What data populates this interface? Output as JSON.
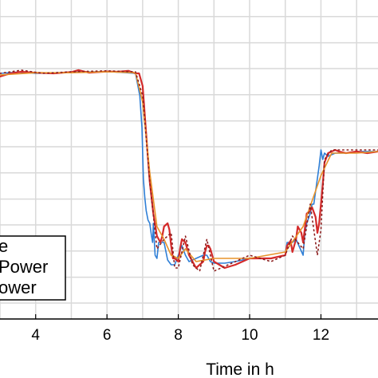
{
  "chart_data": {
    "type": "line",
    "xlabel": "Time in h",
    "ylabel": "",
    "xlim": [
      3.0,
      13.6
    ],
    "ylim": [
      0.0,
      1.0
    ],
    "grid": true,
    "x_ticks": [
      4,
      6,
      8,
      10,
      12
    ],
    "x_tick_labels": [
      "4",
      "6",
      "8",
      "10",
      "12"
    ],
    "y_grid": [
      0.05,
      0.131,
      0.213,
      0.295,
      0.376,
      0.458,
      0.54,
      0.621,
      0.703,
      0.785,
      0.866,
      0.948
    ],
    "legend": {
      "placement": "bottom-left",
      "entries": [
        "e",
        "Power",
        "ower"
      ]
    },
    "colors": {
      "blue": "#2f7fd6",
      "red": "#d42a2a",
      "orange": "#e8932a",
      "dark_red": "#8c1d1d"
    },
    "series": [
      {
        "color": "#2f7fd6",
        "style": "solid",
        "x": [
          3.0,
          3.5,
          4.0,
          5.0,
          6.0,
          6.8,
          6.92,
          6.98,
          7.02,
          7.06,
          7.1,
          7.15,
          7.2,
          7.25,
          7.28,
          7.3,
          7.35,
          7.4,
          7.45,
          7.5,
          7.6,
          7.7,
          7.8,
          7.9,
          8.0,
          8.1,
          8.2,
          8.3,
          8.5,
          8.7,
          8.8,
          8.9,
          9.0,
          9.3,
          9.6,
          10.0,
          10.6,
          11.0,
          11.05,
          11.2,
          11.3,
          11.5,
          11.55,
          11.6,
          11.7,
          11.75,
          11.8,
          11.95,
          12.0,
          12.05,
          12.1,
          12.2,
          12.4,
          12.7,
          13.0,
          13.6
        ],
        "y": [
          0.77,
          0.774,
          0.77,
          0.773,
          0.776,
          0.77,
          0.7,
          0.6,
          0.44,
          0.38,
          0.34,
          0.31,
          0.3,
          0.26,
          0.24,
          0.3,
          0.2,
          0.19,
          0.24,
          0.24,
          0.24,
          0.185,
          0.17,
          0.17,
          0.2,
          0.23,
          0.2,
          0.18,
          0.19,
          0.2,
          0.2,
          0.18,
          0.175,
          0.175,
          0.18,
          0.19,
          0.19,
          0.2,
          0.24,
          0.24,
          0.25,
          0.2,
          0.27,
          0.3,
          0.33,
          0.36,
          0.36,
          0.48,
          0.53,
          0.5,
          0.52,
          0.51,
          0.52,
          0.52,
          0.525,
          0.525
        ]
      },
      {
        "color": "#d42a2a",
        "style": "solid",
        "x": [
          3.0,
          3.3,
          3.6,
          4.0,
          4.5,
          5.0,
          5.2,
          5.5,
          6.0,
          6.3,
          6.6,
          6.8,
          6.9,
          7.0,
          7.1,
          7.2,
          7.3,
          7.4,
          7.5,
          7.55,
          7.6,
          7.7,
          7.75,
          7.8,
          7.85,
          7.9,
          8.0,
          8.05,
          8.1,
          8.2,
          8.3,
          8.5,
          8.7,
          8.75,
          8.8,
          8.85,
          8.9,
          9.0,
          9.3,
          9.6,
          10.0,
          10.3,
          10.6,
          11.0,
          11.05,
          11.15,
          11.2,
          11.3,
          11.35,
          11.45,
          11.5,
          11.6,
          11.7,
          11.75,
          11.85,
          11.9,
          11.95,
          12.05,
          12.1,
          12.2,
          12.4,
          12.5,
          12.7,
          13.0,
          13.3,
          13.6
        ],
        "y": [
          0.76,
          0.77,
          0.775,
          0.772,
          0.77,
          0.774,
          0.78,
          0.772,
          0.776,
          0.775,
          0.778,
          0.77,
          0.77,
          0.73,
          0.58,
          0.43,
          0.33,
          0.26,
          0.24,
          0.26,
          0.29,
          0.3,
          0.28,
          0.23,
          0.19,
          0.19,
          0.18,
          0.22,
          0.25,
          0.24,
          0.2,
          0.16,
          0.18,
          0.21,
          0.23,
          0.23,
          0.22,
          0.18,
          0.16,
          0.17,
          0.19,
          0.19,
          0.19,
          0.2,
          0.23,
          0.245,
          0.21,
          0.25,
          0.29,
          0.27,
          0.24,
          0.33,
          0.34,
          0.35,
          0.32,
          0.27,
          0.3,
          0.42,
          0.49,
          0.52,
          0.53,
          0.525,
          0.52,
          0.525,
          0.52,
          0.525
        ]
      },
      {
        "color": "#e8932a",
        "style": "solid",
        "x": [
          3.0,
          4.0,
          5.0,
          6.0,
          6.8,
          7.0,
          7.2,
          7.4,
          7.6,
          7.8,
          8.0,
          8.2,
          8.5,
          9.0,
          10.0,
          11.0,
          11.5,
          12.0,
          12.3,
          13.0,
          13.6
        ],
        "y": [
          0.765,
          0.772,
          0.772,
          0.775,
          0.772,
          0.68,
          0.46,
          0.29,
          0.25,
          0.2,
          0.19,
          0.22,
          0.18,
          0.19,
          0.19,
          0.21,
          0.29,
          0.45,
          0.52,
          0.52,
          0.525
        ]
      },
      {
        "color": "#8c1d1d",
        "style": "dotted",
        "x": [
          3.0,
          3.6,
          4.2,
          5.0,
          6.0,
          6.8,
          7.0,
          7.2,
          7.4,
          7.6,
          7.8,
          7.9,
          8.0,
          8.2,
          8.4,
          8.6,
          8.8,
          9.0,
          9.4,
          10.0,
          10.6,
          11.0,
          11.2,
          11.5,
          11.7,
          11.9,
          12.0,
          12.1,
          12.3,
          13.0,
          13.6
        ],
        "y": [
          0.77,
          0.78,
          0.77,
          0.775,
          0.778,
          0.775,
          0.7,
          0.43,
          0.22,
          0.25,
          0.27,
          0.16,
          0.16,
          0.26,
          0.17,
          0.15,
          0.25,
          0.15,
          0.17,
          0.2,
          0.18,
          0.2,
          0.26,
          0.22,
          0.36,
          0.2,
          0.28,
          0.5,
          0.53,
          0.53,
          0.53
        ]
      }
    ]
  }
}
